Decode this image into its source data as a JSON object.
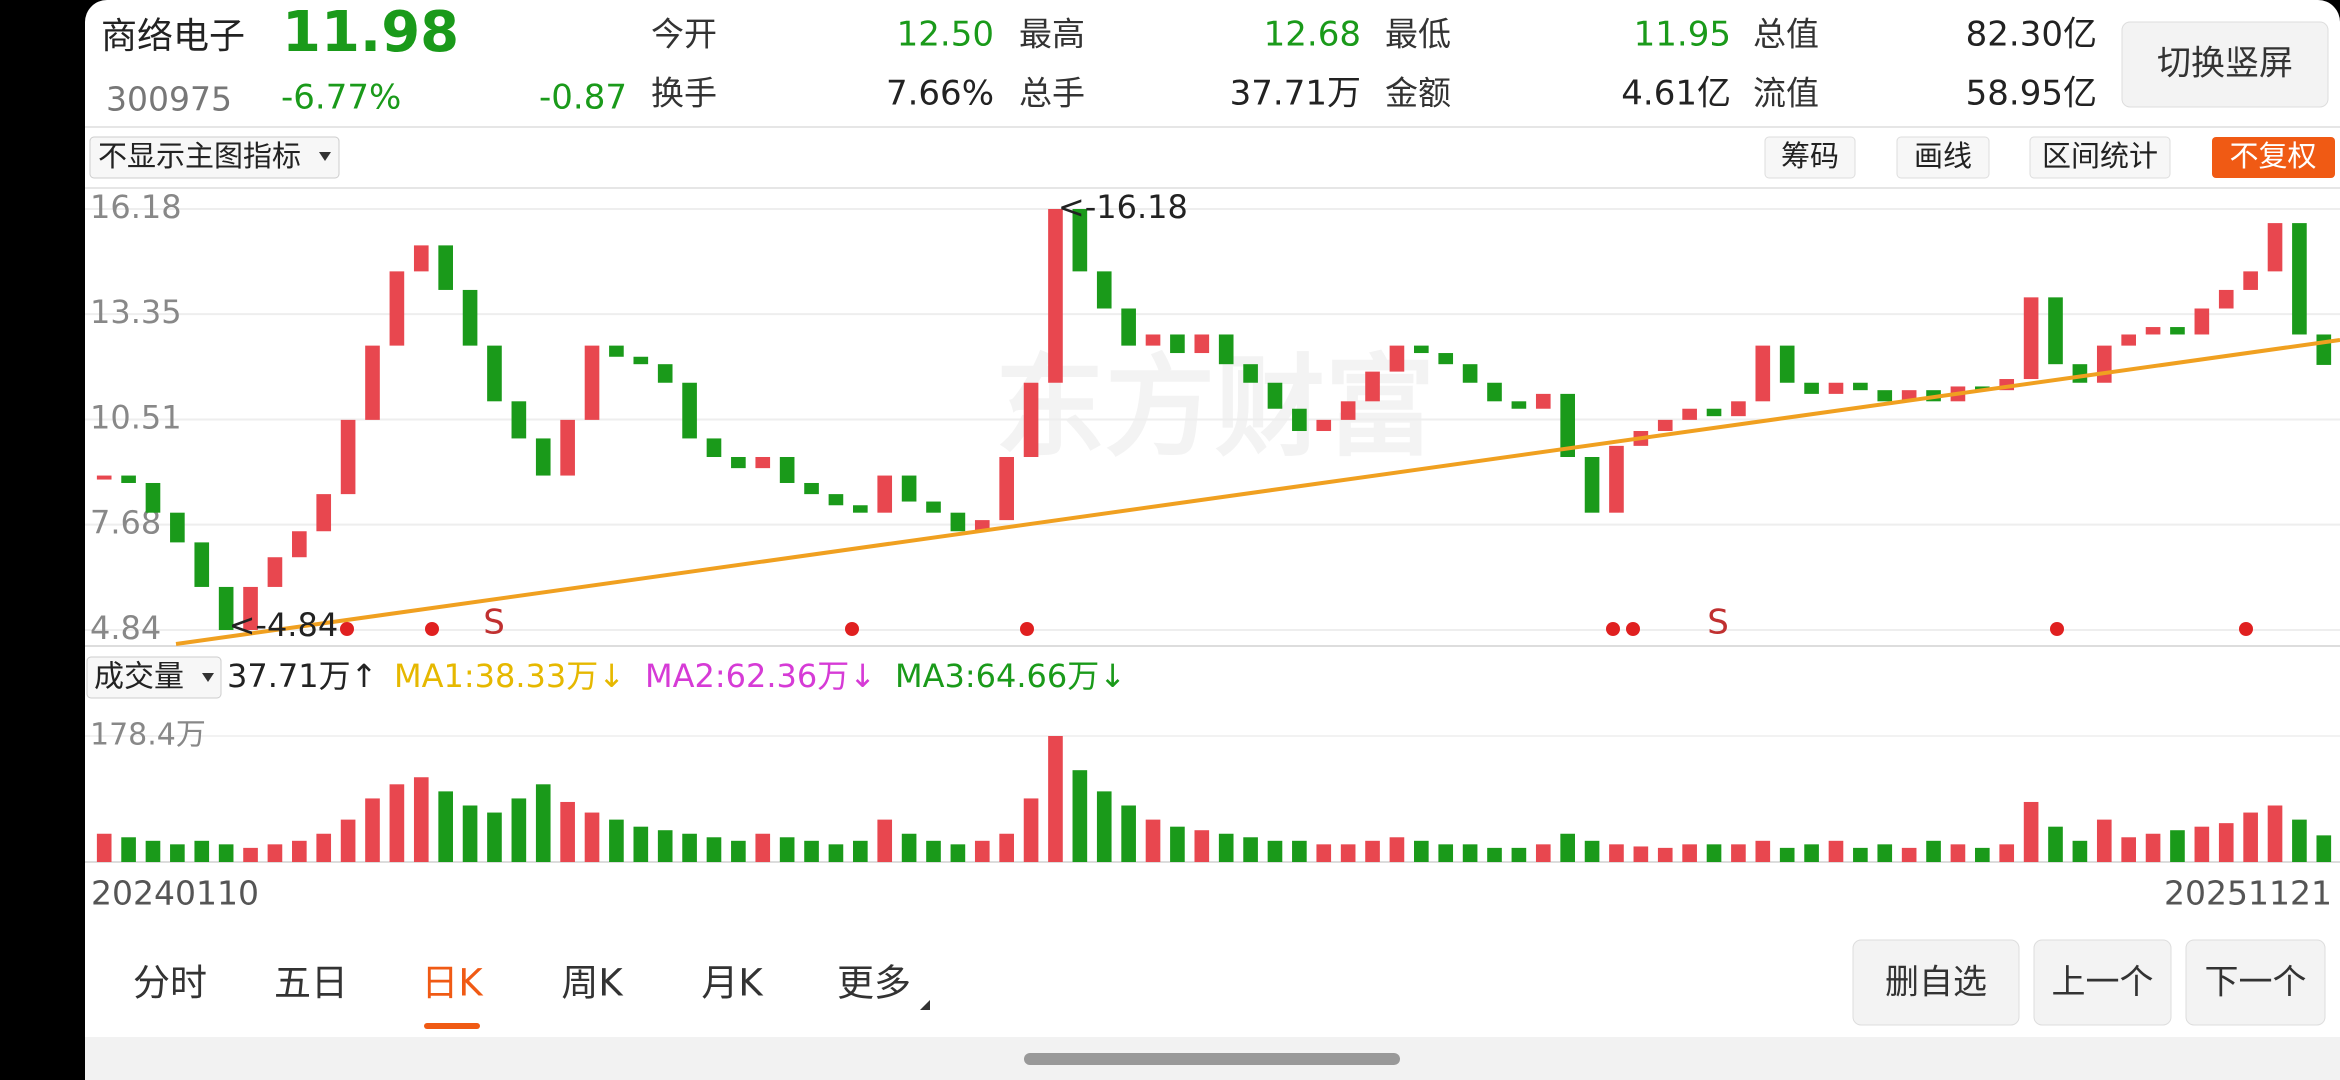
{
  "header": {
    "name": "商络电子",
    "price": "11.98",
    "code": "300975",
    "change_pct": "-6.77%",
    "change": "-0.87",
    "button": "切换竖屏",
    "stats": [
      {
        "label": "今开",
        "value": "12.50",
        "color": "#1a9a1a"
      },
      {
        "label": "最高",
        "value": "12.68",
        "color": "#1a9a1a"
      },
      {
        "label": "最低",
        "value": "11.95",
        "color": "#1a9a1a"
      },
      {
        "label": "总值",
        "value": "82.30亿",
        "color": "#222222"
      },
      {
        "label": "换手",
        "value": "7.66%",
        "color": "#222222"
      },
      {
        "label": "总手",
        "value": "37.71万",
        "color": "#222222"
      },
      {
        "label": "金额",
        "value": "4.61亿",
        "color": "#222222"
      },
      {
        "label": "流值",
        "value": "58.95亿",
        "color": "#222222"
      }
    ]
  },
  "toolbar": {
    "indicator": "不显示主图指标",
    "tools": [
      "筹码",
      "画线",
      "区间统计"
    ],
    "adjust": "不复权"
  },
  "chart_data": {
    "type": "candlestick",
    "up_color": "#e8474f",
    "down_color": "#1a9a1a",
    "ylim": [
      4.84,
      16.18
    ],
    "yticks": [
      16.18,
      13.35,
      10.51,
      7.68,
      4.84
    ],
    "grid": true,
    "annotations": [
      "<-16.18",
      "<-4.84"
    ],
    "watermark": "东方财富",
    "signals": [
      "S",
      "S"
    ],
    "values": [
      9.0,
      8.8,
      8.0,
      7.2,
      6.0,
      4.84,
      6.0,
      6.8,
      7.5,
      8.5,
      10.5,
      12.5,
      14.5,
      15.2,
      14.0,
      12.5,
      11.0,
      10.0,
      9.0,
      10.5,
      12.5,
      12.2,
      12.0,
      11.5,
      10.0,
      9.5,
      9.2,
      9.5,
      8.8,
      8.5,
      8.2,
      8.0,
      9.0,
      8.3,
      8.0,
      7.5,
      7.8,
      9.5,
      11.5,
      16.18,
      14.5,
      13.5,
      12.5,
      12.8,
      12.3,
      12.8,
      12.0,
      11.5,
      10.8,
      10.2,
      10.5,
      11.0,
      11.8,
      12.5,
      12.3,
      12.0,
      11.5,
      11.0,
      10.8,
      11.2,
      9.5,
      8.0,
      9.8,
      10.2,
      10.5,
      10.8,
      10.6,
      11.0,
      12.5,
      11.5,
      11.2,
      11.5,
      11.3,
      11.0,
      11.3,
      11.0,
      11.4,
      11.3,
      11.6,
      13.8,
      12.0,
      11.5,
      12.5,
      12.8,
      13.0,
      12.8,
      13.5,
      14.0,
      14.5,
      15.8,
      12.8,
      11.98
    ]
  },
  "volume": {
    "label": "成交量",
    "current": "37.71万↑",
    "ma": [
      {
        "label": "MA1:38.33万↓",
        "color": "#e6b800"
      },
      {
        "label": "MA2:62.36万↓",
        "color": "#d63bd6"
      },
      {
        "label": "MA3:64.66万↓",
        "color": "#1a9a1a"
      }
    ],
    "ylim": [
      0,
      178.4
    ],
    "yticks": [
      {
        "value": 178.4,
        "label": "178.4万"
      }
    ],
    "values": [
      40,
      35,
      30,
      25,
      30,
      25,
      20,
      25,
      30,
      40,
      60,
      90,
      110,
      120,
      100,
      80,
      70,
      90,
      110,
      85,
      70,
      60,
      50,
      45,
      40,
      35,
      30,
      40,
      35,
      30,
      25,
      30,
      60,
      40,
      30,
      25,
      30,
      40,
      90,
      178.4,
      130,
      100,
      80,
      60,
      50,
      45,
      40,
      35,
      30,
      30,
      25,
      25,
      30,
      35,
      30,
      25,
      25,
      20,
      20,
      25,
      40,
      30,
      25,
      22,
      20,
      25,
      25,
      25,
      30,
      20,
      25,
      30,
      20,
      25,
      20,
      30,
      25,
      20,
      25,
      85,
      50,
      30,
      60,
      35,
      40,
      45,
      50,
      55,
      70,
      80,
      60,
      37.71
    ]
  },
  "dates": [
    "20240110",
    "20251121"
  ],
  "tabs": [
    "分时",
    "五日",
    "日K",
    "周K",
    "月K",
    "更多"
  ],
  "active_tab": 2,
  "buttons": [
    "删自选",
    "上一个",
    "下一个"
  ]
}
